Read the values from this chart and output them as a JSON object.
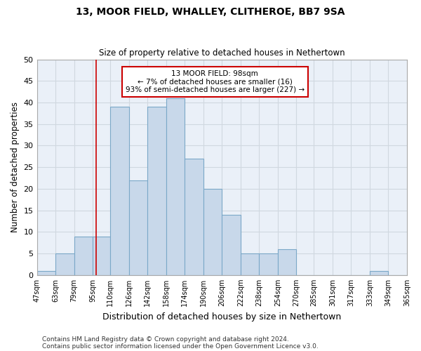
{
  "title": "13, MOOR FIELD, WHALLEY, CLITHEROE, BB7 9SA",
  "subtitle": "Size of property relative to detached houses in Nethertown",
  "xlabel": "Distribution of detached houses by size in Nethertown",
  "ylabel": "Number of detached properties",
  "bin_edges": [
    47,
    63,
    79,
    95,
    110,
    126,
    142,
    158,
    174,
    190,
    206,
    222,
    238,
    254,
    270,
    285,
    301,
    317,
    333,
    349,
    365
  ],
  "bin_counts": [
    1,
    5,
    9,
    9,
    39,
    22,
    39,
    41,
    27,
    20,
    14,
    5,
    5,
    6,
    0,
    0,
    0,
    0,
    1,
    0
  ],
  "bar_color": "#c8d8ea",
  "bar_edge_color": "#7ba8c8",
  "reference_line_x": 98,
  "reference_line_color": "#cc0000",
  "annotation_box_color": "#cc0000",
  "annotation_text_line1": "13 MOOR FIELD: 98sqm",
  "annotation_text_line2": "← 7% of detached houses are smaller (16)",
  "annotation_text_line3": "93% of semi-detached houses are larger (227) →",
  "ylim": [
    0,
    50
  ],
  "yticks": [
    0,
    5,
    10,
    15,
    20,
    25,
    30,
    35,
    40,
    45,
    50
  ],
  "tick_labels": [
    "47sqm",
    "63sqm",
    "79sqm",
    "95sqm",
    "110sqm",
    "126sqm",
    "142sqm",
    "158sqm",
    "174sqm",
    "190sqm",
    "206sqm",
    "222sqm",
    "238sqm",
    "254sqm",
    "270sqm",
    "285sqm",
    "301sqm",
    "317sqm",
    "333sqm",
    "349sqm",
    "365sqm"
  ],
  "footer_line1": "Contains HM Land Registry data © Crown copyright and database right 2024.",
  "footer_line2": "Contains public sector information licensed under the Open Government Licence v3.0.",
  "background_color": "#ffffff",
  "plot_bg_color": "#eaf0f8",
  "grid_color": "#d0d8e0"
}
